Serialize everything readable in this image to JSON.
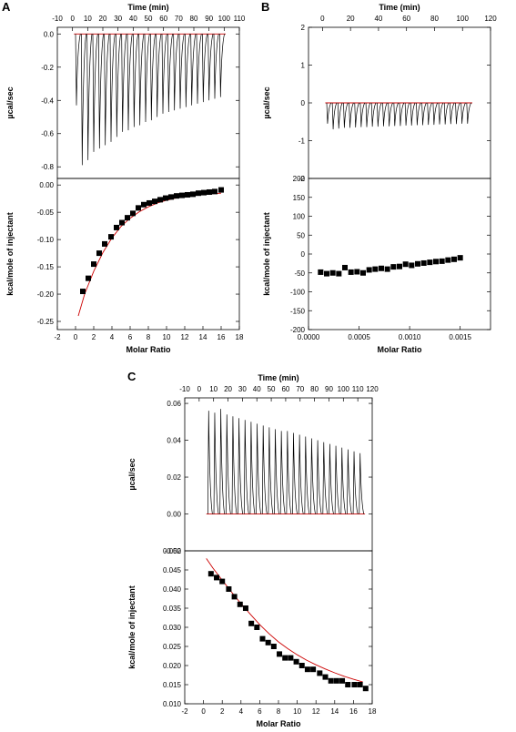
{
  "figure": {
    "panel_labels": [
      "A",
      "B",
      "C"
    ]
  },
  "chart_data": [
    {
      "panel": "A",
      "type": "line",
      "subplot": "raw",
      "x2label": "Time (min)",
      "xlim": [
        -10,
        110
      ],
      "x2ticks": [
        -10,
        0,
        10,
        20,
        30,
        40,
        50,
        60,
        70,
        80,
        90,
        100,
        110
      ],
      "ylabel": "µcal/sec",
      "ylim": [
        -0.87,
        0.04
      ],
      "yticks": [
        0.0,
        -0.2,
        -0.4,
        -0.6,
        -0.8
      ],
      "ytick_labels": [
        "0.0",
        "-0.2",
        "-0.4",
        "-0.6",
        "-0.8"
      ],
      "direction": "down",
      "baseline": 0,
      "injection_times": [
        2,
        5.8,
        9.6,
        13.4,
        17.2,
        21,
        24.8,
        28.6,
        32.4,
        36.2,
        40,
        43.8,
        47.6,
        51.4,
        55.2,
        59,
        62.8,
        66.6,
        70.4,
        74.2,
        78,
        81.8,
        85.6,
        89.4,
        93.2,
        97
      ],
      "peak_values": [
        -0.43,
        -0.79,
        -0.76,
        -0.71,
        -0.69,
        -0.67,
        -0.65,
        -0.62,
        -0.59,
        -0.58,
        -0.56,
        -0.55,
        -0.53,
        -0.52,
        -0.5,
        -0.48,
        -0.47,
        -0.46,
        -0.45,
        -0.44,
        -0.43,
        -0.42,
        -0.41,
        -0.4,
        -0.39,
        -0.38
      ],
      "baseline_color": "#cc0000",
      "trace_color": "#000000"
    },
    {
      "panel": "A",
      "type": "scatter",
      "subplot": "integrated",
      "xlabel": "Molar Ratio",
      "ylabel": "kcal/mole of injectant",
      "xlim": [
        -2,
        18
      ],
      "xticks": [
        -2,
        0,
        2,
        4,
        6,
        8,
        10,
        12,
        14,
        16,
        18
      ],
      "xtick_labels": [
        "-2",
        "0",
        "2",
        "4",
        "6",
        "8",
        "10",
        "12",
        "14",
        "16",
        "18"
      ],
      "ylim": [
        -0.265,
        0.012
      ],
      "yticks": [
        0.0,
        -0.05,
        -0.1,
        -0.15,
        -0.2,
        -0.25
      ],
      "ytick_labels": [
        "0.00",
        "-0.05",
        "-0.10",
        "-0.15",
        "-0.20",
        "-0.25"
      ],
      "points": {
        "x": [
          0.8,
          1.4,
          2.0,
          2.6,
          3.2,
          3.9,
          4.5,
          5.1,
          5.7,
          6.3,
          6.9,
          7.5,
          8.1,
          8.7,
          9.3,
          9.9,
          10.5,
          11.1,
          11.7,
          12.3,
          12.9,
          13.5,
          14.1,
          14.7,
          15.3,
          16.0
        ],
        "y": [
          -0.195,
          -0.171,
          -0.145,
          -0.125,
          -0.108,
          -0.095,
          -0.078,
          -0.069,
          -0.06,
          -0.052,
          -0.042,
          -0.036,
          -0.033,
          -0.03,
          -0.027,
          -0.024,
          -0.022,
          -0.02,
          -0.019,
          -0.018,
          -0.017,
          -0.015,
          -0.014,
          -0.013,
          -0.012,
          -0.009
        ]
      },
      "fit": {
        "x": [
          0.3,
          1,
          2,
          3,
          4,
          5,
          6,
          7,
          8,
          9,
          10,
          11,
          12,
          13,
          14,
          15,
          16
        ],
        "y": [
          -0.24,
          -0.2,
          -0.158,
          -0.124,
          -0.097,
          -0.076,
          -0.061,
          -0.049,
          -0.04,
          -0.033,
          -0.028,
          -0.024,
          -0.021,
          -0.019,
          -0.017,
          -0.016,
          -0.015
        ],
        "color": "#cc0000"
      }
    },
    {
      "panel": "B",
      "type": "line",
      "subplot": "raw",
      "x2label": "Time (min)",
      "xlim": [
        -10,
        120
      ],
      "x2ticks": [
        0,
        20,
        40,
        60,
        80,
        100,
        120
      ],
      "ylabel": "µcal/sec",
      "ylim": [
        -2,
        2
      ],
      "yticks": [
        2,
        1,
        0,
        -1,
        -2
      ],
      "ytick_labels": [
        "2",
        "1",
        "0",
        "-1",
        "-2"
      ],
      "direction": "down",
      "baseline": 0,
      "injection_times": [
        3,
        7,
        11,
        15,
        19,
        23,
        27,
        31,
        35,
        39,
        43,
        47,
        51,
        55,
        59,
        63,
        67,
        71,
        75,
        79,
        83,
        87,
        91,
        95,
        99,
        103
      ],
      "peak_values": [
        -0.55,
        -0.7,
        -0.68,
        -0.66,
        -0.66,
        -0.65,
        -0.64,
        -0.64,
        -0.63,
        -0.63,
        -0.62,
        -0.62,
        -0.61,
        -0.61,
        -0.6,
        -0.6,
        -0.59,
        -0.59,
        -0.58,
        -0.58,
        -0.57,
        -0.57,
        -0.56,
        -0.56,
        -0.55,
        -0.55
      ],
      "baseline_color": "#cc0000",
      "trace_color": "#000000"
    },
    {
      "panel": "B",
      "type": "scatter",
      "subplot": "integrated",
      "xlabel": "Molar Ratio",
      "ylabel": "kcal/mole of injectant",
      "xlim": [
        0,
        0.0018
      ],
      "xticks": [
        0,
        0.0005,
        0.001,
        0.0015
      ],
      "xtick_labels": [
        "0.0000",
        "0.0005",
        "0.0010",
        "0.0015"
      ],
      "ylim": [
        -200,
        200
      ],
      "yticks": [
        200,
        150,
        100,
        50,
        0,
        -50,
        -100,
        -150,
        -200
      ],
      "ytick_labels": [
        "200",
        "150",
        "100",
        "50",
        "0",
        "-50",
        "-100",
        "-150",
        "-200"
      ],
      "points": {
        "x": [
          0.00012,
          0.00018,
          0.00024,
          0.0003,
          0.00036,
          0.00042,
          0.00048,
          0.00054,
          0.0006,
          0.00066,
          0.00072,
          0.00078,
          0.00084,
          0.0009,
          0.00096,
          0.00102,
          0.00108,
          0.00114,
          0.0012,
          0.00126,
          0.00132,
          0.00138,
          0.00144,
          0.0015
        ],
        "y": [
          -48,
          -52,
          -50,
          -52,
          -36,
          -48,
          -47,
          -50,
          -42,
          -40,
          -38,
          -40,
          -34,
          -33,
          -27,
          -30,
          -26,
          -24,
          -22,
          -20,
          -19,
          -16,
          -14,
          -10
        ]
      }
    },
    {
      "panel": "C",
      "type": "line",
      "subplot": "raw",
      "x2label": "Time (min)",
      "xlim": [
        -10,
        120
      ],
      "x2ticks": [
        -10,
        0,
        10,
        20,
        30,
        40,
        50,
        60,
        70,
        80,
        90,
        100,
        110,
        120
      ],
      "ylabel": "µcal/sec",
      "ylim": [
        -0.02,
        0.063
      ],
      "yticks": [
        0.06,
        0.04,
        0.02,
        0.0,
        -0.02
      ],
      "ytick_labels": [
        "0.06",
        "0.04",
        "0.02",
        "0.00",
        "-0.02"
      ],
      "direction": "up",
      "baseline": 0,
      "injection_times": [
        6,
        10.2,
        14.4,
        18.6,
        22.8,
        27,
        31.2,
        35.4,
        39.6,
        43.8,
        48,
        52.2,
        56.4,
        60.6,
        64.8,
        69,
        73.2,
        77.4,
        81.6,
        85.8,
        90,
        94.2,
        98.4,
        102.6,
        106.8,
        111
      ],
      "peak_values": [
        0.056,
        0.055,
        0.057,
        0.054,
        0.053,
        0.052,
        0.051,
        0.05,
        0.049,
        0.048,
        0.047,
        0.046,
        0.045,
        0.045,
        0.044,
        0.043,
        0.042,
        0.041,
        0.04,
        0.039,
        0.038,
        0.037,
        0.036,
        0.035,
        0.034,
        0.033
      ],
      "baseline_color": "#cc0000",
      "trace_color": "#000000"
    },
    {
      "panel": "C",
      "type": "scatter",
      "subplot": "integrated",
      "xlabel": "Molar Ratio",
      "ylabel": "kcal/mole of injectant",
      "xlim": [
        -2,
        18
      ],
      "xticks": [
        -2,
        0,
        2,
        4,
        6,
        8,
        10,
        12,
        14,
        16,
        18
      ],
      "xtick_labels": [
        "-2",
        "0",
        "2",
        "4",
        "6",
        "8",
        "10",
        "12",
        "14",
        "16",
        "18"
      ],
      "ylim": [
        0.01,
        0.05
      ],
      "yticks": [
        0.05,
        0.045,
        0.04,
        0.035,
        0.03,
        0.025,
        0.02,
        0.015,
        0.01
      ],
      "ytick_labels": [
        "0.050",
        "0.045",
        "0.040",
        "0.035",
        "0.030",
        "0.025",
        "0.020",
        "0.015",
        "0.010"
      ],
      "points": {
        "x": [
          0.8,
          1.4,
          2.0,
          2.7,
          3.3,
          3.9,
          4.5,
          5.1,
          5.7,
          6.3,
          6.9,
          7.5,
          8.1,
          8.7,
          9.3,
          9.9,
          10.5,
          11.1,
          11.7,
          12.4,
          13.0,
          13.6,
          14.2,
          14.8,
          15.4,
          16.1,
          16.7,
          17.3
        ],
        "y": [
          0.044,
          0.043,
          0.042,
          0.04,
          0.038,
          0.036,
          0.035,
          0.031,
          0.03,
          0.027,
          0.026,
          0.025,
          0.023,
          0.022,
          0.022,
          0.021,
          0.02,
          0.019,
          0.019,
          0.018,
          0.017,
          0.016,
          0.016,
          0.016,
          0.015,
          0.015,
          0.015,
          0.014
        ]
      },
      "fit": {
        "x": [
          0.3,
          1,
          2,
          3,
          4,
          5,
          6,
          7,
          8,
          9,
          10,
          11,
          12,
          13,
          14,
          15,
          16,
          17
        ],
        "y": [
          0.048,
          0.0455,
          0.0423,
          0.0392,
          0.0362,
          0.0334,
          0.0307,
          0.0283,
          0.0262,
          0.0244,
          0.0228,
          0.0214,
          0.0202,
          0.0191,
          0.0181,
          0.0172,
          0.0164,
          0.0157
        ],
        "color": "#cc0000"
      }
    }
  ]
}
